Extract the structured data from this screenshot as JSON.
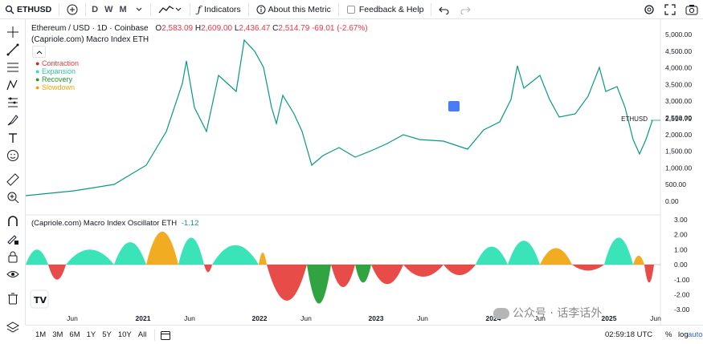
{
  "toolbar": {
    "symbol": "ETHUSD",
    "timeframes": [
      "D",
      "W",
      "M"
    ],
    "indicators_label": "Indicators",
    "about_label": "About this Metric",
    "feedback_label": "Feedback & Help"
  },
  "main_legend": {
    "title": "Ethereum / USD · 1D · Coinbase",
    "ohlc": {
      "o_label": "O",
      "o": "2,583.09",
      "h_label": "H",
      "h": "2,609.00",
      "l_label": "L",
      "l": "2,436.47",
      "c_label": "C",
      "c": "2,514.79",
      "change": "-69.01 (-2.67%)"
    },
    "indicator": "(Capriole.com) Macro Index ETH",
    "phases": [
      {
        "label": "Contraction",
        "color": "#e53935"
      },
      {
        "label": "Expansion",
        "color": "#26e0b0"
      },
      {
        "label": "Recovery",
        "color": "#1b9a2c"
      },
      {
        "label": "Slowdown",
        "color": "#f0a30a"
      }
    ]
  },
  "price_axis": {
    "ticks": [
      "5,000.00",
      "4,500.00",
      "4,000.00",
      "3,500.00",
      "3,000.00",
      "2,500.00",
      "2,000.00",
      "1,500.00",
      "1,000.00",
      "500.00",
      "0.00"
    ],
    "last_label": "ETHUSD",
    "last_value": "2,514.79"
  },
  "osc_legend": {
    "title": "(Capriole.com) Macro Index Oscillator ETH",
    "value": "-1.12"
  },
  "osc_axis": {
    "ticks": [
      "3.00",
      "2.00",
      "1.00",
      "0.00",
      "-1.00",
      "-2.00",
      "-3.00"
    ]
  },
  "time_axis": {
    "labels": [
      "Jun",
      "2021",
      "Jun",
      "2022",
      "Jun",
      "2023",
      "Jun",
      "2024",
      "Jun",
      "2025",
      "Jun"
    ]
  },
  "bottom": {
    "ranges": [
      "1M",
      "3M",
      "6M",
      "1Y",
      "5Y",
      "10Y",
      "All"
    ],
    "clock": "02:59:18 UTC",
    "pct": "%",
    "log": "log",
    "auto": "auto"
  },
  "watermark": "公众号 · 话李话外",
  "colors": {
    "accent": "#2962ff",
    "down": "#f23645",
    "up": "#089981"
  }
}
